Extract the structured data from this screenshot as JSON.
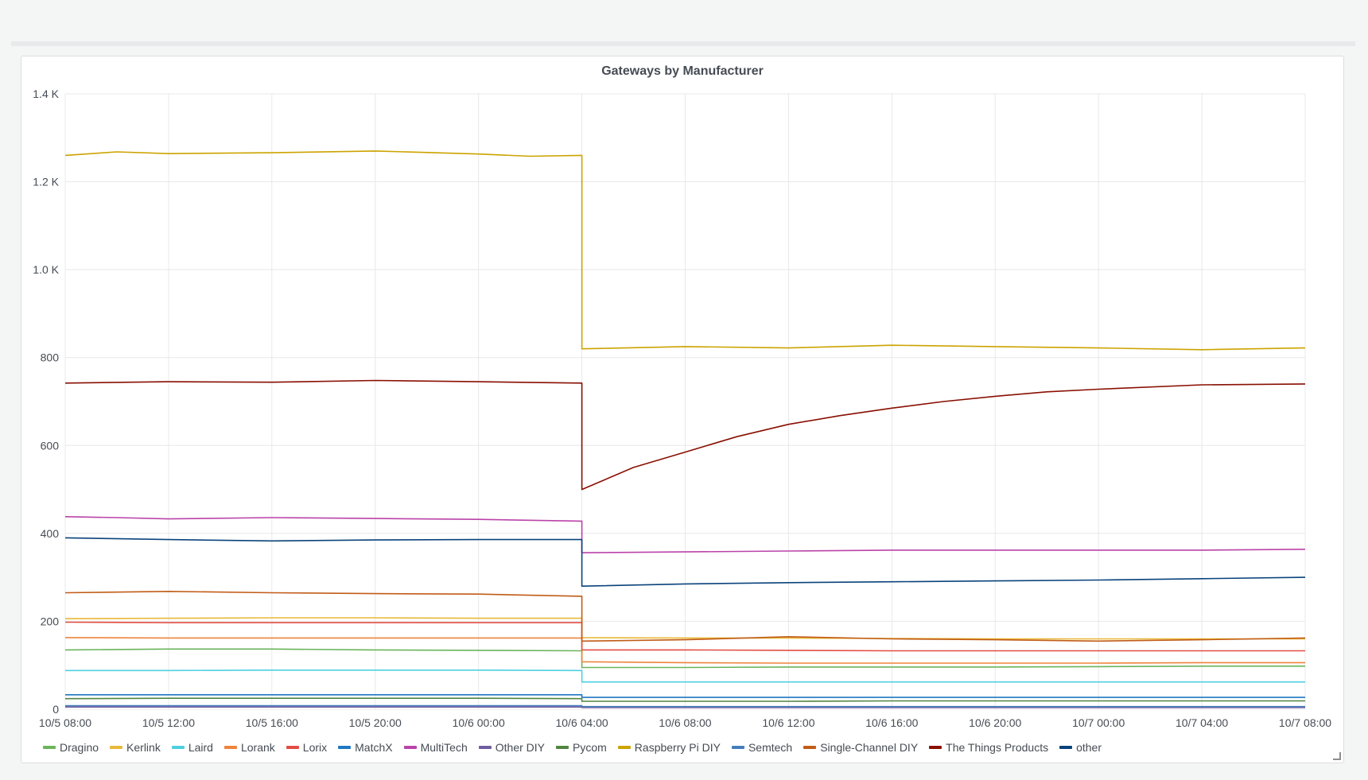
{
  "panel": {
    "title": "Gateways by Manufacturer"
  },
  "colors": {
    "Dragino": "#6ab45a",
    "Kerlink": "#eab839",
    "Laird": "#4dd0e1",
    "Lorank": "#ef843c",
    "Lorix": "#e24d42",
    "MatchX": "#1f78c1",
    "MultiTech": "#ba43a9",
    "Other DIY": "#705da0",
    "Pycom": "#508642",
    "Raspberry Pi DIY": "#cca300",
    "Semtech": "#447ebc",
    "Single-Channel DIY": "#c15c17",
    "The Things Products": "#890f02",
    "other": "#0a437c"
  },
  "chart_data": {
    "type": "line",
    "title": "Gateways by Manufacturer",
    "xlabel": "",
    "ylabel": "",
    "x_range": [
      "10/5 08:00",
      "10/7 08:00"
    ],
    "ylim": [
      0,
      1400
    ],
    "grid": true,
    "legend_position": "bottom",
    "x_ticks": [
      "10/5 08:00",
      "10/5 12:00",
      "10/5 16:00",
      "10/5 20:00",
      "10/6 00:00",
      "10/6 04:00",
      "10/6 08:00",
      "10/6 12:00",
      "10/6 16:00",
      "10/6 20:00",
      "10/7 00:00",
      "10/7 04:00",
      "10/7 08:00"
    ],
    "y_ticks": [
      {
        "value": 0,
        "label": "0"
      },
      {
        "value": 200,
        "label": "200"
      },
      {
        "value": 400,
        "label": "400"
      },
      {
        "value": 600,
        "label": "600"
      },
      {
        "value": 800,
        "label": "800"
      },
      {
        "value": 1000,
        "label": "1.0 K"
      },
      {
        "value": 1200,
        "label": "1.2 K"
      },
      {
        "value": 1400,
        "label": "1.4 K"
      }
    ],
    "series": [
      {
        "name": "Dragino",
        "points": [
          [
            "10/5 08:00",
            135
          ],
          [
            "10/5 12:00",
            137
          ],
          [
            "10/5 16:00",
            137
          ],
          [
            "10/5 20:00",
            135
          ],
          [
            "10/6 00:00",
            134
          ],
          [
            "10/6 04:00",
            133
          ],
          [
            "10/6 04:00",
            95
          ],
          [
            "10/6 08:00",
            95
          ],
          [
            "10/6 12:00",
            96
          ],
          [
            "10/6 16:00",
            96
          ],
          [
            "10/6 20:00",
            96
          ],
          [
            "10/7 00:00",
            97
          ],
          [
            "10/7 04:00",
            98
          ],
          [
            "10/7 08:00",
            98
          ]
        ]
      },
      {
        "name": "Kerlink",
        "points": [
          [
            "10/5 08:00",
            206
          ],
          [
            "10/5 12:00",
            207
          ],
          [
            "10/5 16:00",
            208
          ],
          [
            "10/5 20:00",
            208
          ],
          [
            "10/6 00:00",
            207
          ],
          [
            "10/6 04:00",
            207
          ],
          [
            "10/6 04:00",
            163
          ],
          [
            "10/6 08:00",
            162
          ],
          [
            "10/6 12:00",
            162
          ],
          [
            "10/6 16:00",
            161
          ],
          [
            "10/6 20:00",
            160
          ],
          [
            "10/7 00:00",
            160
          ],
          [
            "10/7 04:00",
            160
          ],
          [
            "10/7 08:00",
            160
          ]
        ]
      },
      {
        "name": "Laird",
        "points": [
          [
            "10/5 08:00",
            88
          ],
          [
            "10/5 12:00",
            88
          ],
          [
            "10/5 16:00",
            89
          ],
          [
            "10/5 20:00",
            89
          ],
          [
            "10/6 00:00",
            89
          ],
          [
            "10/6 04:00",
            88
          ],
          [
            "10/6 04:00",
            62
          ],
          [
            "10/6 08:00",
            62
          ],
          [
            "10/6 12:00",
            62
          ],
          [
            "10/6 16:00",
            62
          ],
          [
            "10/6 20:00",
            62
          ],
          [
            "10/7 00:00",
            62
          ],
          [
            "10/7 04:00",
            62
          ],
          [
            "10/7 08:00",
            62
          ]
        ]
      },
      {
        "name": "Lorank",
        "points": [
          [
            "10/5 08:00",
            163
          ],
          [
            "10/5 12:00",
            162
          ],
          [
            "10/5 16:00",
            162
          ],
          [
            "10/5 20:00",
            162
          ],
          [
            "10/6 00:00",
            162
          ],
          [
            "10/6 04:00",
            162
          ],
          [
            "10/6 04:00",
            108
          ],
          [
            "10/6 08:00",
            106
          ],
          [
            "10/6 12:00",
            105
          ],
          [
            "10/6 16:00",
            105
          ],
          [
            "10/6 20:00",
            105
          ],
          [
            "10/7 00:00",
            105
          ],
          [
            "10/7 04:00",
            106
          ],
          [
            "10/7 08:00",
            106
          ]
        ]
      },
      {
        "name": "Lorix",
        "points": [
          [
            "10/5 08:00",
            198
          ],
          [
            "10/5 12:00",
            197
          ],
          [
            "10/5 16:00",
            197
          ],
          [
            "10/5 20:00",
            197
          ],
          [
            "10/6 00:00",
            197
          ],
          [
            "10/6 04:00",
            197
          ],
          [
            "10/6 04:00",
            135
          ],
          [
            "10/6 08:00",
            135
          ],
          [
            "10/6 12:00",
            134
          ],
          [
            "10/6 16:00",
            133
          ],
          [
            "10/6 20:00",
            133
          ],
          [
            "10/7 00:00",
            133
          ],
          [
            "10/7 04:00",
            133
          ],
          [
            "10/7 08:00",
            133
          ]
        ]
      },
      {
        "name": "MatchX",
        "points": [
          [
            "10/5 08:00",
            33
          ],
          [
            "10/5 12:00",
            33
          ],
          [
            "10/5 16:00",
            33
          ],
          [
            "10/5 20:00",
            33
          ],
          [
            "10/6 00:00",
            33
          ],
          [
            "10/6 04:00",
            33
          ],
          [
            "10/6 04:00",
            27
          ],
          [
            "10/6 08:00",
            27
          ],
          [
            "10/6 12:00",
            27
          ],
          [
            "10/6 16:00",
            27
          ],
          [
            "10/6 20:00",
            27
          ],
          [
            "10/7 00:00",
            27
          ],
          [
            "10/7 04:00",
            27
          ],
          [
            "10/7 08:00",
            27
          ]
        ]
      },
      {
        "name": "MultiTech",
        "points": [
          [
            "10/5 08:00",
            438
          ],
          [
            "10/5 10:00",
            436
          ],
          [
            "10/5 12:00",
            433
          ],
          [
            "10/5 16:00",
            436
          ],
          [
            "10/5 20:00",
            434
          ],
          [
            "10/6 00:00",
            432
          ],
          [
            "10/6 04:00",
            428
          ],
          [
            "10/6 04:00",
            356
          ],
          [
            "10/6 08:00",
            358
          ],
          [
            "10/6 12:00",
            360
          ],
          [
            "10/6 16:00",
            362
          ],
          [
            "10/6 20:00",
            362
          ],
          [
            "10/7 00:00",
            362
          ],
          [
            "10/7 04:00",
            362
          ],
          [
            "10/7 08:00",
            364
          ]
        ]
      },
      {
        "name": "Other DIY",
        "points": [
          [
            "10/5 08:00",
            5
          ],
          [
            "10/6 04:00",
            5
          ],
          [
            "10/6 04:00",
            4
          ],
          [
            "10/7 08:00",
            4
          ]
        ]
      },
      {
        "name": "Pycom",
        "points": [
          [
            "10/5 08:00",
            24
          ],
          [
            "10/5 12:00",
            25
          ],
          [
            "10/5 16:00",
            25
          ],
          [
            "10/5 20:00",
            25
          ],
          [
            "10/6 00:00",
            25
          ],
          [
            "10/6 04:00",
            24
          ],
          [
            "10/6 04:00",
            18
          ],
          [
            "10/6 08:00",
            18
          ],
          [
            "10/6 12:00",
            18
          ],
          [
            "10/6 16:00",
            19
          ],
          [
            "10/6 20:00",
            19
          ],
          [
            "10/7 00:00",
            19
          ],
          [
            "10/7 04:00",
            19
          ],
          [
            "10/7 08:00",
            19
          ]
        ]
      },
      {
        "name": "Raspberry Pi DIY",
        "points": [
          [
            "10/5 08:00",
            1260
          ],
          [
            "10/5 10:00",
            1268
          ],
          [
            "10/5 12:00",
            1264
          ],
          [
            "10/5 16:00",
            1266
          ],
          [
            "10/5 20:00",
            1270
          ],
          [
            "10/6 00:00",
            1263
          ],
          [
            "10/6 02:00",
            1258
          ],
          [
            "10/6 04:00",
            1260
          ],
          [
            "10/6 04:00",
            820
          ],
          [
            "10/6 08:00",
            825
          ],
          [
            "10/6 12:00",
            822
          ],
          [
            "10/6 16:00",
            828
          ],
          [
            "10/6 20:00",
            825
          ],
          [
            "10/7 00:00",
            822
          ],
          [
            "10/7 04:00",
            818
          ],
          [
            "10/7 08:00",
            822
          ]
        ]
      },
      {
        "name": "Semtech",
        "points": [
          [
            "10/5 08:00",
            8
          ],
          [
            "10/6 04:00",
            8
          ],
          [
            "10/6 04:00",
            6
          ],
          [
            "10/7 08:00",
            6
          ]
        ]
      },
      {
        "name": "Single-Channel DIY",
        "points": [
          [
            "10/5 08:00",
            265
          ],
          [
            "10/5 12:00",
            268
          ],
          [
            "10/5 16:00",
            265
          ],
          [
            "10/5 20:00",
            263
          ],
          [
            "10/6 00:00",
            262
          ],
          [
            "10/6 04:00",
            257
          ],
          [
            "10/6 04:00",
            155
          ],
          [
            "10/6 08:00",
            158
          ],
          [
            "10/6 12:00",
            165
          ],
          [
            "10/6 16:00",
            160
          ],
          [
            "10/6 20:00",
            158
          ],
          [
            "10/7 00:00",
            155
          ],
          [
            "10/7 04:00",
            158
          ],
          [
            "10/7 08:00",
            162
          ]
        ]
      },
      {
        "name": "The Things Products",
        "points": [
          [
            "10/5 08:00",
            742
          ],
          [
            "10/5 12:00",
            745
          ],
          [
            "10/5 16:00",
            744
          ],
          [
            "10/5 20:00",
            748
          ],
          [
            "10/6 00:00",
            745
          ],
          [
            "10/6 04:00",
            742
          ],
          [
            "10/6 04:00",
            500
          ],
          [
            "10/6 06:00",
            550
          ],
          [
            "10/6 08:00",
            585
          ],
          [
            "10/6 10:00",
            620
          ],
          [
            "10/6 12:00",
            648
          ],
          [
            "10/6 14:00",
            668
          ],
          [
            "10/6 16:00",
            685
          ],
          [
            "10/6 18:00",
            700
          ],
          [
            "10/6 20:00",
            712
          ],
          [
            "10/6 22:00",
            722
          ],
          [
            "10/7 00:00",
            728
          ],
          [
            "10/7 04:00",
            738
          ],
          [
            "10/7 08:00",
            740
          ]
        ]
      },
      {
        "name": "other",
        "points": [
          [
            "10/5 08:00",
            390
          ],
          [
            "10/5 12:00",
            386
          ],
          [
            "10/5 16:00",
            383
          ],
          [
            "10/5 20:00",
            385
          ],
          [
            "10/6 00:00",
            386
          ],
          [
            "10/6 04:00",
            386
          ],
          [
            "10/6 04:00",
            280
          ],
          [
            "10/6 08:00",
            285
          ],
          [
            "10/6 12:00",
            288
          ],
          [
            "10/6 16:00",
            290
          ],
          [
            "10/6 20:00",
            292
          ],
          [
            "10/7 00:00",
            294
          ],
          [
            "10/7 04:00",
            297
          ],
          [
            "10/7 08:00",
            300
          ]
        ]
      }
    ]
  }
}
